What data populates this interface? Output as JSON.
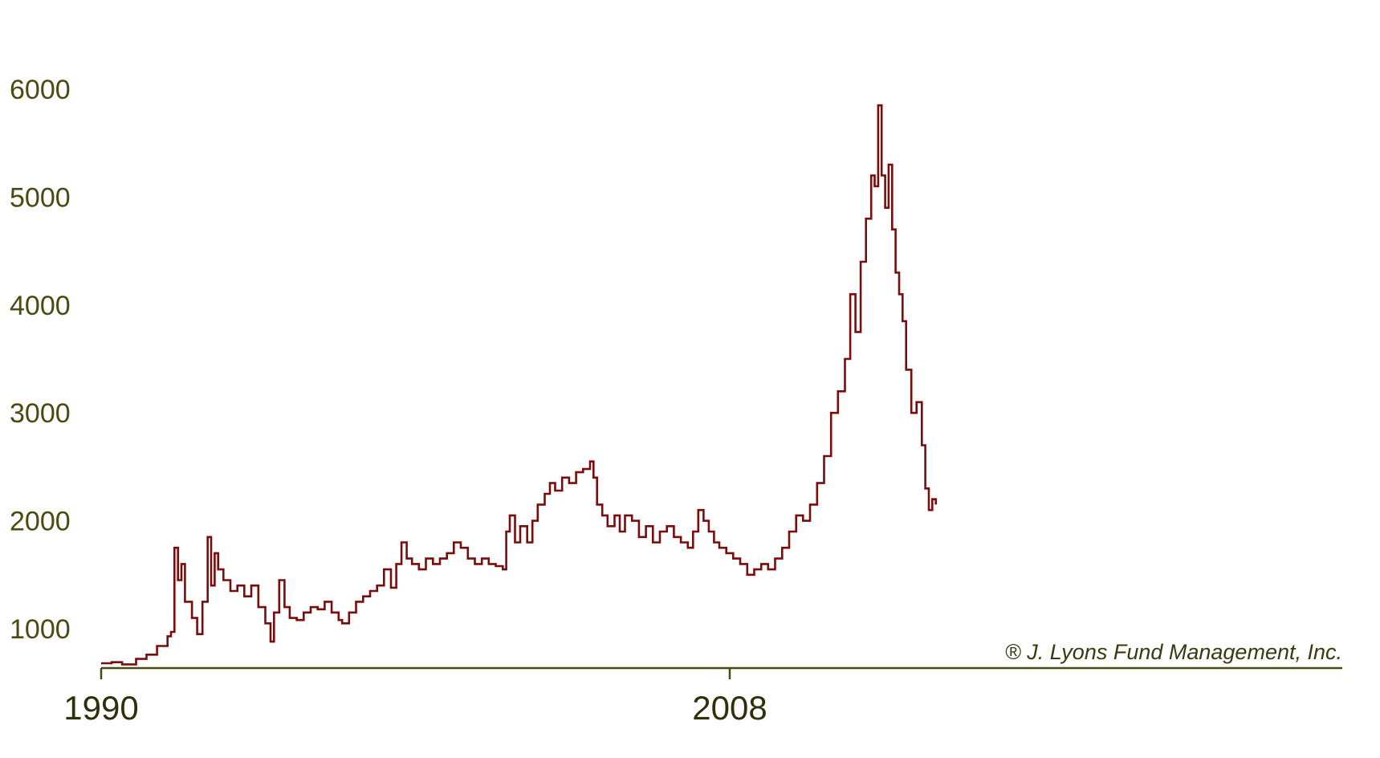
{
  "chart_data": {
    "type": "line",
    "title": "",
    "xlabel": "",
    "ylabel": "",
    "xlim": [
      1990,
      2019.7
    ],
    "ylim": [
      600,
      6000
    ],
    "y_ticks": [
      {
        "value": 1000,
        "label": "1000"
      },
      {
        "value": 2000,
        "label": "2000"
      },
      {
        "value": 3000,
        "label": "3000"
      },
      {
        "value": 4000,
        "label": "4000"
      },
      {
        "value": 5000,
        "label": "5000"
      },
      {
        "value": 6000,
        "label": "6000"
      }
    ],
    "x_ticks": [
      {
        "value": 1990,
        "label": "1990"
      },
      {
        "value": 2008,
        "label": "2008"
      }
    ],
    "grid": false,
    "legend": "none",
    "annotation": "® J. Lyons Fund Management, Inc.",
    "colors": {
      "series": "#7a0c0c",
      "axis": "#4a4a12",
      "ytick_text": "#4a4a12",
      "xtick_text": "#2f2f0c"
    },
    "series": [
      {
        "values": [
          [
            1990.0,
            680
          ],
          [
            1990.3,
            690
          ],
          [
            1990.6,
            670
          ],
          [
            1991.0,
            720
          ],
          [
            1991.3,
            760
          ],
          [
            1991.6,
            840
          ],
          [
            1991.9,
            930
          ],
          [
            1992.0,
            970
          ],
          [
            1992.1,
            1750
          ],
          [
            1992.2,
            1450
          ],
          [
            1992.3,
            1600
          ],
          [
            1992.4,
            1250
          ],
          [
            1992.6,
            1100
          ],
          [
            1992.75,
            950
          ],
          [
            1992.9,
            1250
          ],
          [
            1993.05,
            1850
          ],
          [
            1993.15,
            1400
          ],
          [
            1993.25,
            1700
          ],
          [
            1993.35,
            1550
          ],
          [
            1993.5,
            1450
          ],
          [
            1993.7,
            1350
          ],
          [
            1993.9,
            1400
          ],
          [
            1994.1,
            1300
          ],
          [
            1994.3,
            1400
          ],
          [
            1994.5,
            1200
          ],
          [
            1994.7,
            1050
          ],
          [
            1994.85,
            880
          ],
          [
            1994.95,
            1150
          ],
          [
            1995.1,
            1450
          ],
          [
            1995.25,
            1200
          ],
          [
            1995.4,
            1100
          ],
          [
            1995.6,
            1080
          ],
          [
            1995.8,
            1150
          ],
          [
            1996.0,
            1200
          ],
          [
            1996.2,
            1180
          ],
          [
            1996.4,
            1250
          ],
          [
            1996.6,
            1150
          ],
          [
            1996.8,
            1080
          ],
          [
            1996.9,
            1050
          ],
          [
            1997.1,
            1150
          ],
          [
            1997.3,
            1250
          ],
          [
            1997.5,
            1300
          ],
          [
            1997.7,
            1350
          ],
          [
            1997.9,
            1400
          ],
          [
            1998.1,
            1550
          ],
          [
            1998.3,
            1380
          ],
          [
            1998.45,
            1600
          ],
          [
            1998.6,
            1800
          ],
          [
            1998.75,
            1650
          ],
          [
            1998.9,
            1600
          ],
          [
            1999.1,
            1550
          ],
          [
            1999.3,
            1650
          ],
          [
            1999.5,
            1600
          ],
          [
            1999.7,
            1650
          ],
          [
            1999.9,
            1700
          ],
          [
            2000.1,
            1800
          ],
          [
            2000.3,
            1750
          ],
          [
            2000.5,
            1650
          ],
          [
            2000.7,
            1600
          ],
          [
            2000.9,
            1650
          ],
          [
            2001.1,
            1600
          ],
          [
            2001.3,
            1580
          ],
          [
            2001.5,
            1550
          ],
          [
            2001.6,
            1900
          ],
          [
            2001.7,
            2050
          ],
          [
            2001.85,
            1800
          ],
          [
            2002.0,
            1950
          ],
          [
            2002.2,
            1800
          ],
          [
            2002.35,
            2000
          ],
          [
            2002.5,
            2150
          ],
          [
            2002.7,
            2250
          ],
          [
            2002.85,
            2350
          ],
          [
            2003.0,
            2280
          ],
          [
            2003.2,
            2400
          ],
          [
            2003.4,
            2350
          ],
          [
            2003.6,
            2450
          ],
          [
            2003.8,
            2480
          ],
          [
            2004.0,
            2550
          ],
          [
            2004.1,
            2400
          ],
          [
            2004.2,
            2150
          ],
          [
            2004.35,
            2050
          ],
          [
            2004.5,
            1950
          ],
          [
            2004.7,
            2050
          ],
          [
            2004.85,
            1900
          ],
          [
            2005.0,
            2050
          ],
          [
            2005.2,
            2000
          ],
          [
            2005.4,
            1850
          ],
          [
            2005.6,
            1950
          ],
          [
            2005.8,
            1800
          ],
          [
            2006.0,
            1900
          ],
          [
            2006.2,
            1950
          ],
          [
            2006.4,
            1850
          ],
          [
            2006.6,
            1800
          ],
          [
            2006.8,
            1750
          ],
          [
            2006.95,
            1900
          ],
          [
            2007.1,
            2100
          ],
          [
            2007.25,
            2000
          ],
          [
            2007.4,
            1900
          ],
          [
            2007.55,
            1800
          ],
          [
            2007.7,
            1750
          ],
          [
            2007.9,
            1700
          ],
          [
            2008.1,
            1650
          ],
          [
            2008.3,
            1600
          ],
          [
            2008.5,
            1500
          ],
          [
            2008.7,
            1550
          ],
          [
            2008.9,
            1600
          ],
          [
            2009.1,
            1550
          ],
          [
            2009.3,
            1650
          ],
          [
            2009.5,
            1750
          ],
          [
            2009.7,
            1900
          ],
          [
            2009.9,
            2050
          ],
          [
            2010.1,
            2000
          ],
          [
            2010.3,
            2150
          ],
          [
            2010.5,
            2350
          ],
          [
            2010.7,
            2600
          ],
          [
            2010.9,
            3000
          ],
          [
            2011.1,
            3200
          ],
          [
            2011.3,
            3500
          ],
          [
            2011.45,
            4100
          ],
          [
            2011.6,
            3750
          ],
          [
            2011.75,
            4400
          ],
          [
            2011.9,
            4800
          ],
          [
            2012.05,
            5200
          ],
          [
            2012.15,
            5100
          ],
          [
            2012.25,
            5850
          ],
          [
            2012.35,
            5200
          ],
          [
            2012.45,
            4900
          ],
          [
            2012.55,
            5300
          ],
          [
            2012.65,
            4700
          ],
          [
            2012.75,
            4300
          ],
          [
            2012.85,
            4100
          ],
          [
            2012.95,
            3850
          ],
          [
            2013.05,
            3400
          ],
          [
            2013.2,
            3000
          ],
          [
            2013.35,
            3100
          ],
          [
            2013.5,
            2700
          ],
          [
            2013.6,
            2300
          ],
          [
            2013.7,
            2100
          ],
          [
            2013.8,
            2200
          ],
          [
            2013.9,
            2150
          ]
        ]
      }
    ]
  }
}
